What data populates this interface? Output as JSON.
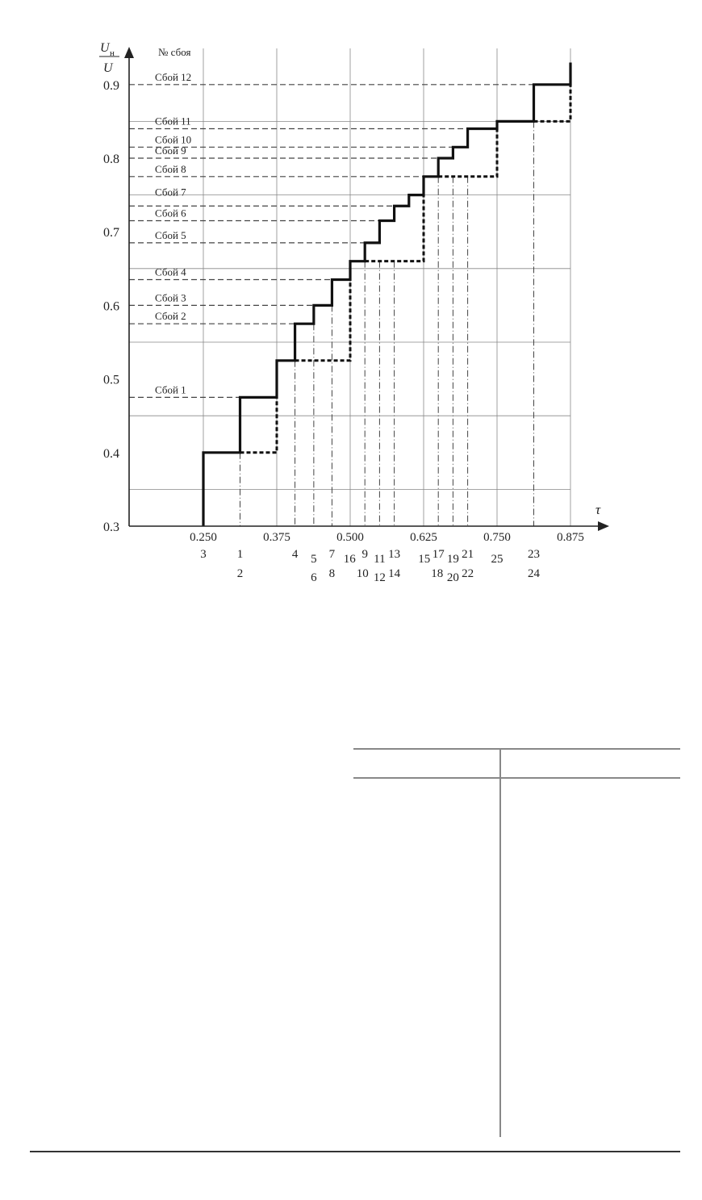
{
  "chart_data": {
    "type": "line",
    "y_label_numerator": "U",
    "y_label_numerator_sub": "н",
    "y_label_denominator": "U",
    "x_label": "τ",
    "column_header": "№ сбоя",
    "xlim": [
      0.125,
      0.9
    ],
    "ylim": [
      0.3,
      0.93
    ],
    "x_ticks": [
      "0.250",
      "0.375",
      "0.500",
      "0.625",
      "0.750",
      "0.875"
    ],
    "y_ticks": [
      "0.3",
      "0.4",
      "0.5",
      "0.6",
      "0.7",
      "0.8",
      "0.9"
    ],
    "grid_y_minor": [
      0.35,
      0.45,
      0.55,
      0.65,
      0.75,
      0.85
    ],
    "grid": true,
    "series_solid_steps": [
      {
        "from": 0.25,
        "to": 0.3125,
        "value": 0.4
      },
      {
        "from": 0.3125,
        "to": 0.375,
        "value": 0.475
      },
      {
        "from": 0.375,
        "to": 0.406,
        "value": 0.525
      },
      {
        "from": 0.406,
        "to": 0.438,
        "value": 0.575
      },
      {
        "from": 0.438,
        "to": 0.469,
        "value": 0.6
      },
      {
        "from": 0.469,
        "to": 0.5,
        "value": 0.635
      },
      {
        "from": 0.5,
        "to": 0.525,
        "value": 0.66
      },
      {
        "from": 0.525,
        "to": 0.55,
        "value": 0.685
      },
      {
        "from": 0.55,
        "to": 0.575,
        "value": 0.715
      },
      {
        "from": 0.575,
        "to": 0.6,
        "value": 0.735
      },
      {
        "from": 0.6,
        "to": 0.625,
        "value": 0.75
      },
      {
        "from": 0.625,
        "to": 0.65,
        "value": 0.775
      },
      {
        "from": 0.65,
        "to": 0.675,
        "value": 0.8
      },
      {
        "from": 0.675,
        "to": 0.7,
        "value": 0.815
      },
      {
        "from": 0.7,
        "to": 0.75,
        "value": 0.84
      },
      {
        "from": 0.75,
        "to": 0.8125,
        "value": 0.85
      },
      {
        "from": 0.8125,
        "to": 0.875,
        "value": 0.9
      }
    ],
    "solid_end_value": 0.93,
    "series_dashed_steps": [
      {
        "from": 0.3125,
        "to": 0.375,
        "value": 0.4,
        "rise_to": 0.475
      },
      {
        "from": 0.406,
        "to": 0.5,
        "value": 0.525,
        "rise_to": 0.635
      },
      {
        "from": 0.525,
        "to": 0.625,
        "value": 0.66,
        "rise_to": 0.75
      },
      {
        "from": 0.65,
        "to": 0.75,
        "value": 0.775,
        "rise_to": 0.84
      },
      {
        "from": 0.8125,
        "to": 0.875,
        "value": 0.85,
        "rise_to": 0.9
      }
    ],
    "dashdot_drops": [
      {
        "x": 0.3125,
        "from": 0.4
      },
      {
        "x": 0.406,
        "from": 0.525
      },
      {
        "x": 0.438,
        "from": 0.575
      },
      {
        "x": 0.469,
        "from": 0.6
      },
      {
        "x": 0.525,
        "from": 0.66
      },
      {
        "x": 0.55,
        "from": 0.66
      },
      {
        "x": 0.575,
        "from": 0.66
      },
      {
        "x": 0.65,
        "from": 0.775
      },
      {
        "x": 0.675,
        "from": 0.775
      },
      {
        "x": 0.7,
        "from": 0.775
      },
      {
        "x": 0.8125,
        "from": 0.85
      }
    ],
    "failures": [
      {
        "label": "Сбой 1",
        "value": 0.475,
        "to": 0.3125
      },
      {
        "label": "Сбой 2",
        "value": 0.575,
        "to": 0.406
      },
      {
        "label": "Сбой 3",
        "value": 0.6,
        "to": 0.438
      },
      {
        "label": "Сбой 4",
        "value": 0.635,
        "to": 0.469
      },
      {
        "label": "Сбой 5",
        "value": 0.685,
        "to": 0.525
      },
      {
        "label": "Сбой 6",
        "value": 0.715,
        "to": 0.55
      },
      {
        "label": "Сбой 7",
        "value": 0.735,
        "to": 0.575
      },
      {
        "label": "Сбой 8",
        "value": 0.775,
        "to": 0.625
      },
      {
        "label": "Сбой 9",
        "value": 0.8,
        "to": 0.65
      },
      {
        "label": "Сбой 10",
        "value": 0.815,
        "to": 0.675
      },
      {
        "label": "Сбой 11",
        "value": 0.84,
        "to": 0.7
      },
      {
        "label": "Сбой 12",
        "value": 0.9,
        "to": 0.8125
      }
    ],
    "event_labels": [
      {
        "text": "3",
        "x": 0.25,
        "row": "top"
      },
      {
        "text": "1",
        "x": 0.3125,
        "row": "top"
      },
      {
        "text": "2",
        "x": 0.3125,
        "row": "bottom"
      },
      {
        "text": "4",
        "x": 0.406,
        "row": "top"
      },
      {
        "text": "5",
        "x": 0.438,
        "row": "mid"
      },
      {
        "text": "6",
        "x": 0.438,
        "row": "low"
      },
      {
        "text": "7",
        "x": 0.469,
        "row": "top"
      },
      {
        "text": "8",
        "x": 0.469,
        "row": "bottom"
      },
      {
        "text": "16",
        "x": 0.499,
        "row": "mid"
      },
      {
        "text": "9",
        "x": 0.525,
        "row": "top"
      },
      {
        "text": "10",
        "x": 0.521,
        "row": "bottom"
      },
      {
        "text": "11",
        "x": 0.55,
        "row": "mid"
      },
      {
        "text": "12",
        "x": 0.55,
        "row": "low"
      },
      {
        "text": "13",
        "x": 0.575,
        "row": "top"
      },
      {
        "text": "14",
        "x": 0.575,
        "row": "bottom"
      },
      {
        "text": "15",
        "x": 0.626,
        "row": "mid"
      },
      {
        "text": "17",
        "x": 0.65,
        "row": "top"
      },
      {
        "text": "18",
        "x": 0.648,
        "row": "bottom"
      },
      {
        "text": "19",
        "x": 0.675,
        "row": "mid"
      },
      {
        "text": "20",
        "x": 0.675,
        "row": "low"
      },
      {
        "text": "21",
        "x": 0.7,
        "row": "top"
      },
      {
        "text": "22",
        "x": 0.7,
        "row": "bottom"
      },
      {
        "text": "25",
        "x": 0.75,
        "row": "mid"
      },
      {
        "text": "23",
        "x": 0.8125,
        "row": "top"
      },
      {
        "text": "24",
        "x": 0.8125,
        "row": "bottom"
      }
    ]
  },
  "table": {
    "columns": [
      "",
      ""
    ],
    "rows": []
  }
}
